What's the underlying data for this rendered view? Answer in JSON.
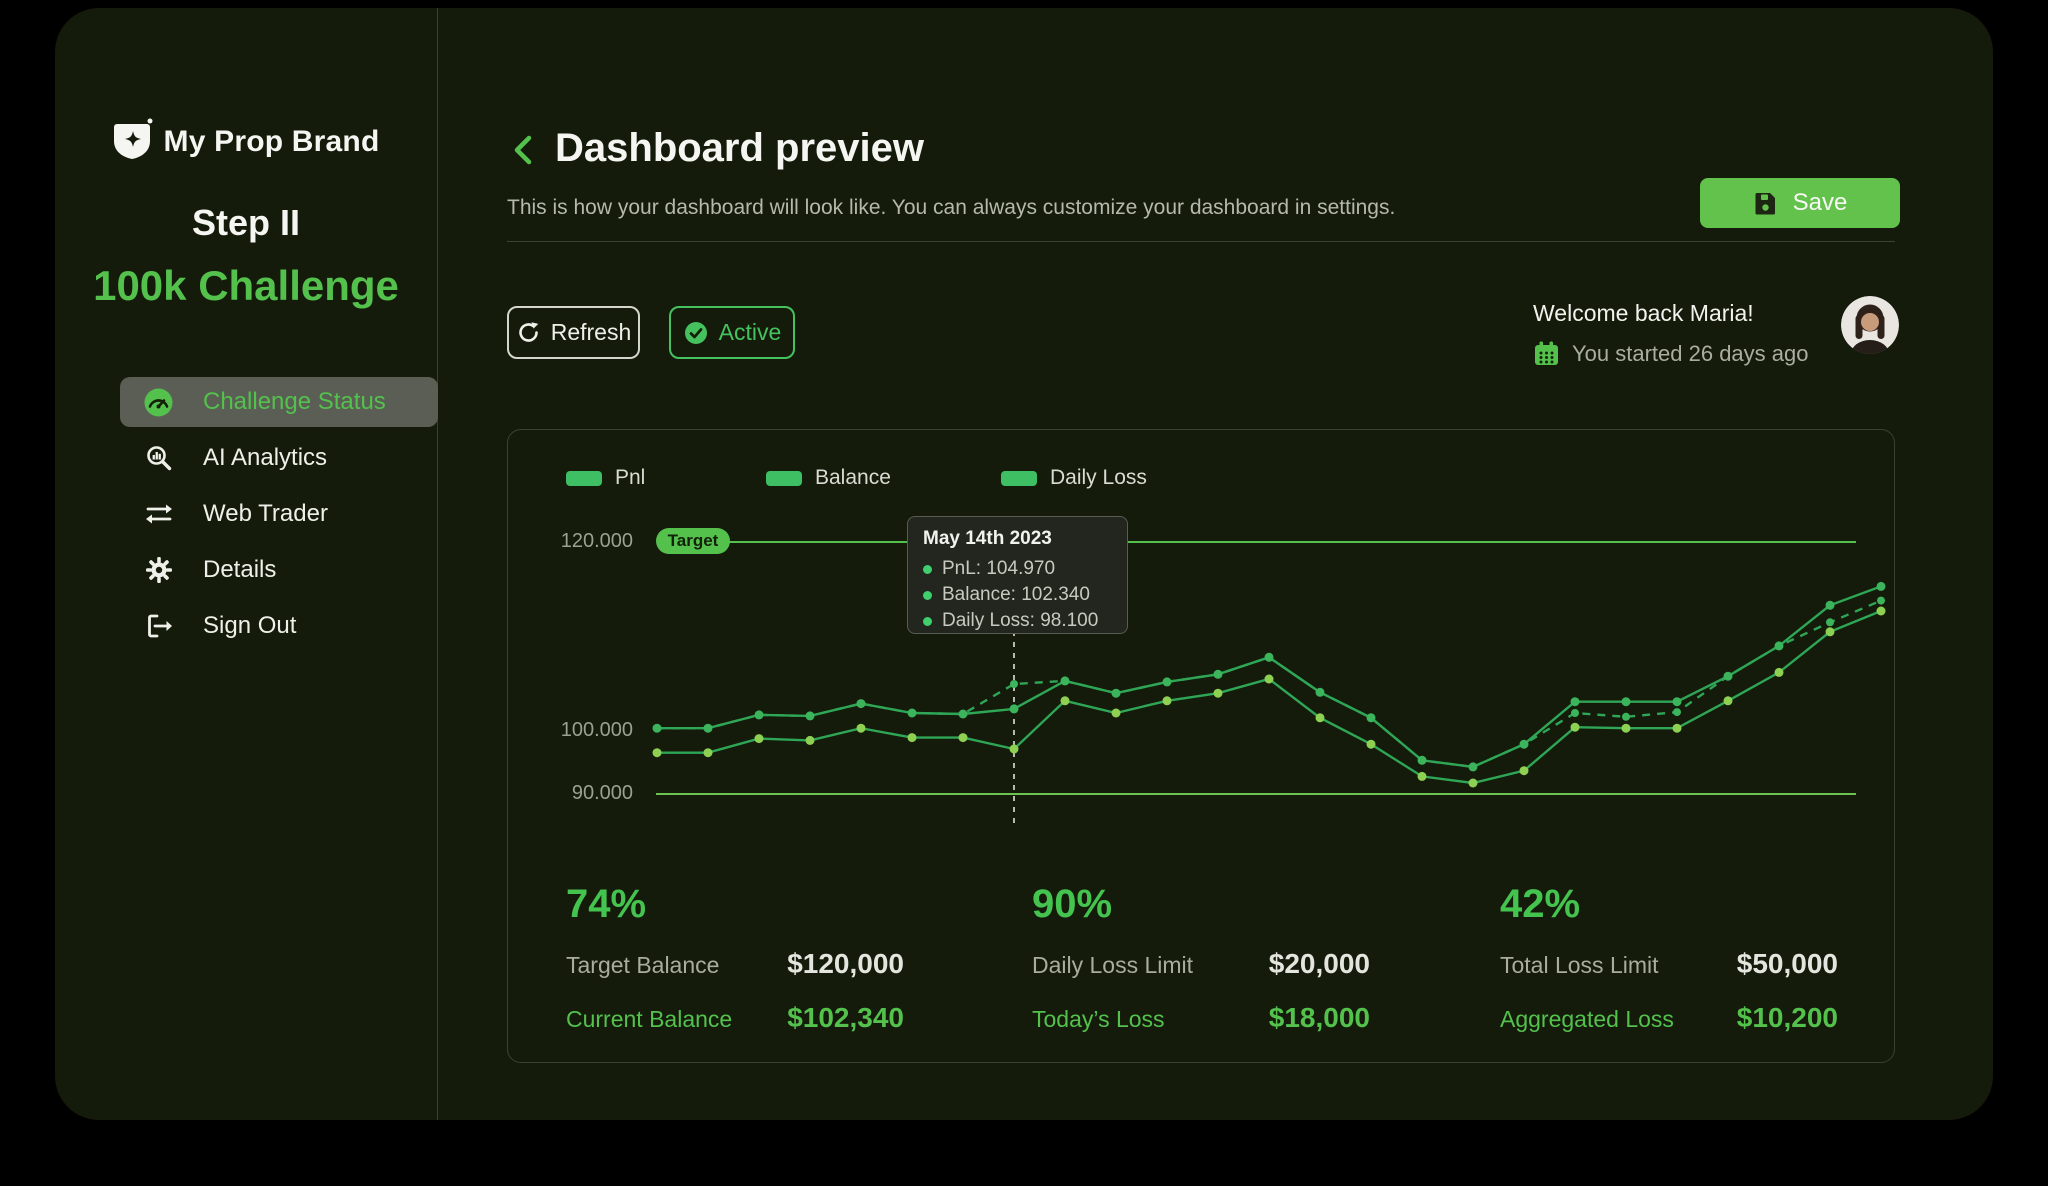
{
  "app": {
    "brand": "My Prop Brand",
    "step": "Step II",
    "challenge": "100k Challenge",
    "logo_icon": "shield-star-icon"
  },
  "sidebar": {
    "items": [
      {
        "label": "Challenge Status",
        "icon": "gauge-icon",
        "active": true
      },
      {
        "label": "AI Analytics",
        "icon": "analytics-icon",
        "active": false
      },
      {
        "label": "Web Trader",
        "icon": "swap-icon",
        "active": false
      },
      {
        "label": "Details",
        "icon": "gear-icon",
        "active": false
      },
      {
        "label": "Sign Out",
        "icon": "sign-out-icon",
        "active": false
      }
    ]
  },
  "header": {
    "back_icon": "chevron-left-icon",
    "title": "Dashboard preview",
    "subtitle": "This is how your dashboard will look like. You can always customize your dashboard in settings.",
    "save_label": "Save",
    "save_icon": "floppy-icon"
  },
  "toolbar": {
    "refresh_label": "Refresh",
    "refresh_icon": "refresh-icon",
    "status_label": "Active",
    "status_icon": "check-circle-icon"
  },
  "welcome": {
    "greeting": "Welcome back Maria!",
    "started": "You started 26 days ago",
    "calendar_icon": "calendar-icon",
    "avatar": "user-avatar"
  },
  "chart": {
    "legend": [
      "Pnl",
      "Balance",
      "Daily Loss"
    ],
    "y_ticks": [
      "120.000",
      "100.000",
      "90.000"
    ],
    "target_label": "Target",
    "tooltip": {
      "title": "May 14th 2023",
      "rows": [
        "PnL: 104.970",
        "Balance: 102.340",
        "Daily Loss: 98.100"
      ]
    }
  },
  "chart_data": {
    "type": "line",
    "x": [
      1,
      2,
      3,
      4,
      5,
      6,
      7,
      8,
      9,
      10,
      11,
      12,
      13,
      14,
      15,
      16,
      17,
      18,
      19,
      20,
      21,
      22,
      23,
      24,
      25
    ],
    "series": [
      {
        "name": "Pnl",
        "style": "dashed",
        "values": [
          100.3,
          100.3,
          101.7,
          101.6,
          102.9,
          101.9,
          101.8,
          104.97,
          105.3,
          104.0,
          105.2,
          106.0,
          107.8,
          104.1,
          101.4,
          96.9,
          96.2,
          98.6,
          101.9,
          101.5,
          102.0,
          105.8,
          109.0,
          111.5,
          113.8
        ]
      },
      {
        "name": "Balance",
        "style": "solid",
        "values": [
          100.3,
          100.3,
          101.7,
          101.6,
          102.9,
          101.9,
          101.8,
          102.34,
          105.3,
          104.0,
          105.2,
          106.0,
          107.8,
          104.1,
          101.4,
          96.9,
          96.2,
          98.6,
          103.1,
          103.1,
          103.1,
          105.8,
          109.0,
          113.3,
          115.3
        ]
      },
      {
        "name": "Daily Loss",
        "style": "solid-light",
        "values": [
          97.7,
          97.7,
          99.2,
          99.0,
          100.3,
          99.3,
          99.3,
          98.1,
          103.2,
          101.9,
          103.2,
          104.0,
          105.5,
          101.4,
          98.6,
          95.2,
          94.5,
          95.8,
          100.4,
          100.3,
          100.3,
          103.2,
          106.2,
          110.5,
          112.7
        ]
      }
    ],
    "units": "thousands",
    "y_tick_values": [
      120,
      100,
      90
    ],
    "target_line": {
      "label": "Target",
      "value": 120
    },
    "lower_gridline_value": 90,
    "highlighted_point": {
      "x_index": 8,
      "date": "May 14th 2023",
      "PnL": 104.97,
      "Balance": 102.34,
      "Daily Loss": 98.1
    },
    "title": "",
    "xlabel": "",
    "ylabel": "",
    "legend_position": "top",
    "grid": "horizontal-only"
  },
  "stats": [
    {
      "percent": "74%",
      "rows": [
        {
          "label": "Target Balance",
          "value": "$120,000",
          "highlight": false
        },
        {
          "label": "Current Balance",
          "value": "$102,340",
          "highlight": true
        }
      ]
    },
    {
      "percent": "90%",
      "rows": [
        {
          "label": "Daily Loss Limit",
          "value": "$20,000",
          "highlight": false
        },
        {
          "label": "Today’s Loss",
          "value": "$18,000",
          "highlight": true
        }
      ]
    },
    {
      "percent": "42%",
      "rows": [
        {
          "label": "Total Loss Limit",
          "value": "$50,000",
          "highlight": false
        },
        {
          "label": "Aggregated Loss",
          "value": "$10,200",
          "highlight": true
        }
      ]
    }
  ],
  "colors": {
    "background": "#141b0b",
    "accent_green": "#54c14d",
    "save_green": "#62c24c",
    "bright_green": "#3fcf6d",
    "line_green": "#2fa656",
    "dot_green": "#3cb45c",
    "dot_light_green": "#8ed052",
    "legend_swatch": "#3fbf63",
    "active_item_bg": "#5a5e55",
    "border_gray": "#3c4135",
    "tooltip_bg": "#22261e",
    "text_primary": "#f2f3ee",
    "text_secondary": "#b4b8ad",
    "tick_gray": "#9aa092",
    "percent_green": "#44c44f"
  }
}
